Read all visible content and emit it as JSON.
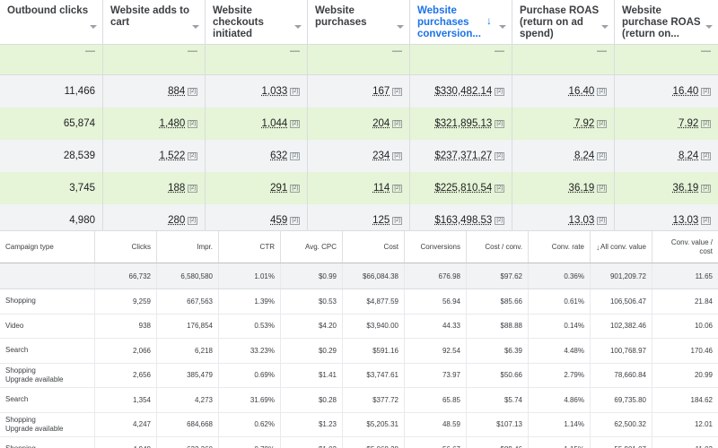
{
  "top_table": {
    "columns": [
      {
        "label": "Outbound clicks",
        "sorted": false
      },
      {
        "label": "Website adds to cart",
        "sorted": false
      },
      {
        "label": "Website checkouts initiated",
        "sorted": false
      },
      {
        "label": "Website purchases",
        "sorted": false
      },
      {
        "label": "Website purchases conversion...",
        "sorted": true
      },
      {
        "label": "Purchase ROAS (return on ad spend)",
        "sorted": false
      },
      {
        "label": "Website purchase ROAS (return on...",
        "sorted": false
      }
    ],
    "sort_arrow": "↓",
    "total_placeholder": "—",
    "sup_marker": "[2]",
    "rows": [
      [
        "11,466",
        "884",
        "1,033",
        "167",
        "$330,482.14",
        "16.40",
        "16.40"
      ],
      [
        "65,874",
        "1,480",
        "1,044",
        "204",
        "$321,895.13",
        "7.92",
        "7.92"
      ],
      [
        "28,539",
        "1,522",
        "632",
        "234",
        "$237,371.27",
        "8.24",
        "8.24"
      ],
      [
        "3,745",
        "188",
        "291",
        "114",
        "$225,810.54",
        "36.19",
        "36.19"
      ],
      [
        "4,980",
        "280",
        "459",
        "125",
        "$163,498.53",
        "13.03",
        "13.03"
      ]
    ]
  },
  "bottom_table": {
    "columns": [
      "Campaign type",
      "Clicks",
      "Impr.",
      "CTR",
      "Avg. CPC",
      "Cost",
      "Conversions",
      "Cost / conv.",
      "Conv. rate",
      "All conv. value",
      "Conv. value / cost"
    ],
    "sort_arrow": "↓",
    "total": [
      "",
      "66,732",
      "6,580,580",
      "1.01%",
      "$0.99",
      "$66,084.38",
      "676.98",
      "$97.62",
      "0.36%",
      "901,209.72",
      "11.65"
    ],
    "rows": [
      {
        "type": "Shopping",
        "sub": "",
        "values": [
          "9,259",
          "667,563",
          "1.39%",
          "$0.53",
          "$4,877.59",
          "56.94",
          "$85.66",
          "0.61%",
          "106,506.47",
          "21.84"
        ]
      },
      {
        "type": "Video",
        "sub": "",
        "values": [
          "938",
          "176,854",
          "0.53%",
          "$4.20",
          "$3,940.00",
          "44.33",
          "$88.88",
          "0.14%",
          "102,382.46",
          "10.06"
        ]
      },
      {
        "type": "Search",
        "sub": "",
        "values": [
          "2,066",
          "6,218",
          "33.23%",
          "$0.29",
          "$591.16",
          "92.54",
          "$6.39",
          "4.48%",
          "100,768.97",
          "170.46"
        ]
      },
      {
        "type": "Shopping",
        "sub": "Upgrade available",
        "values": [
          "2,656",
          "385,479",
          "0.69%",
          "$1.41",
          "$3,747.61",
          "73.97",
          "$50.66",
          "2.79%",
          "78,660.84",
          "20.99"
        ]
      },
      {
        "type": "Search",
        "sub": "",
        "values": [
          "1,354",
          "4,273",
          "31.69%",
          "$0.28",
          "$377.72",
          "65.85",
          "$5.74",
          "4.86%",
          "69,735.80",
          "184.62"
        ]
      },
      {
        "type": "Shopping",
        "sub": "Upgrade available",
        "values": [
          "4,247",
          "684,668",
          "0.62%",
          "$1.23",
          "$5,205.31",
          "48.59",
          "$107.13",
          "1.14%",
          "62,500.32",
          "12.01"
        ]
      },
      {
        "type": "Shopping",
        "sub": "",
        "values": [
          "4,948",
          "632,360",
          "0.78%",
          "$1.02",
          "$5,068.28",
          "56.67",
          "$89.46",
          "1.15%",
          "55,901.07",
          "11.03"
        ]
      }
    ]
  }
}
